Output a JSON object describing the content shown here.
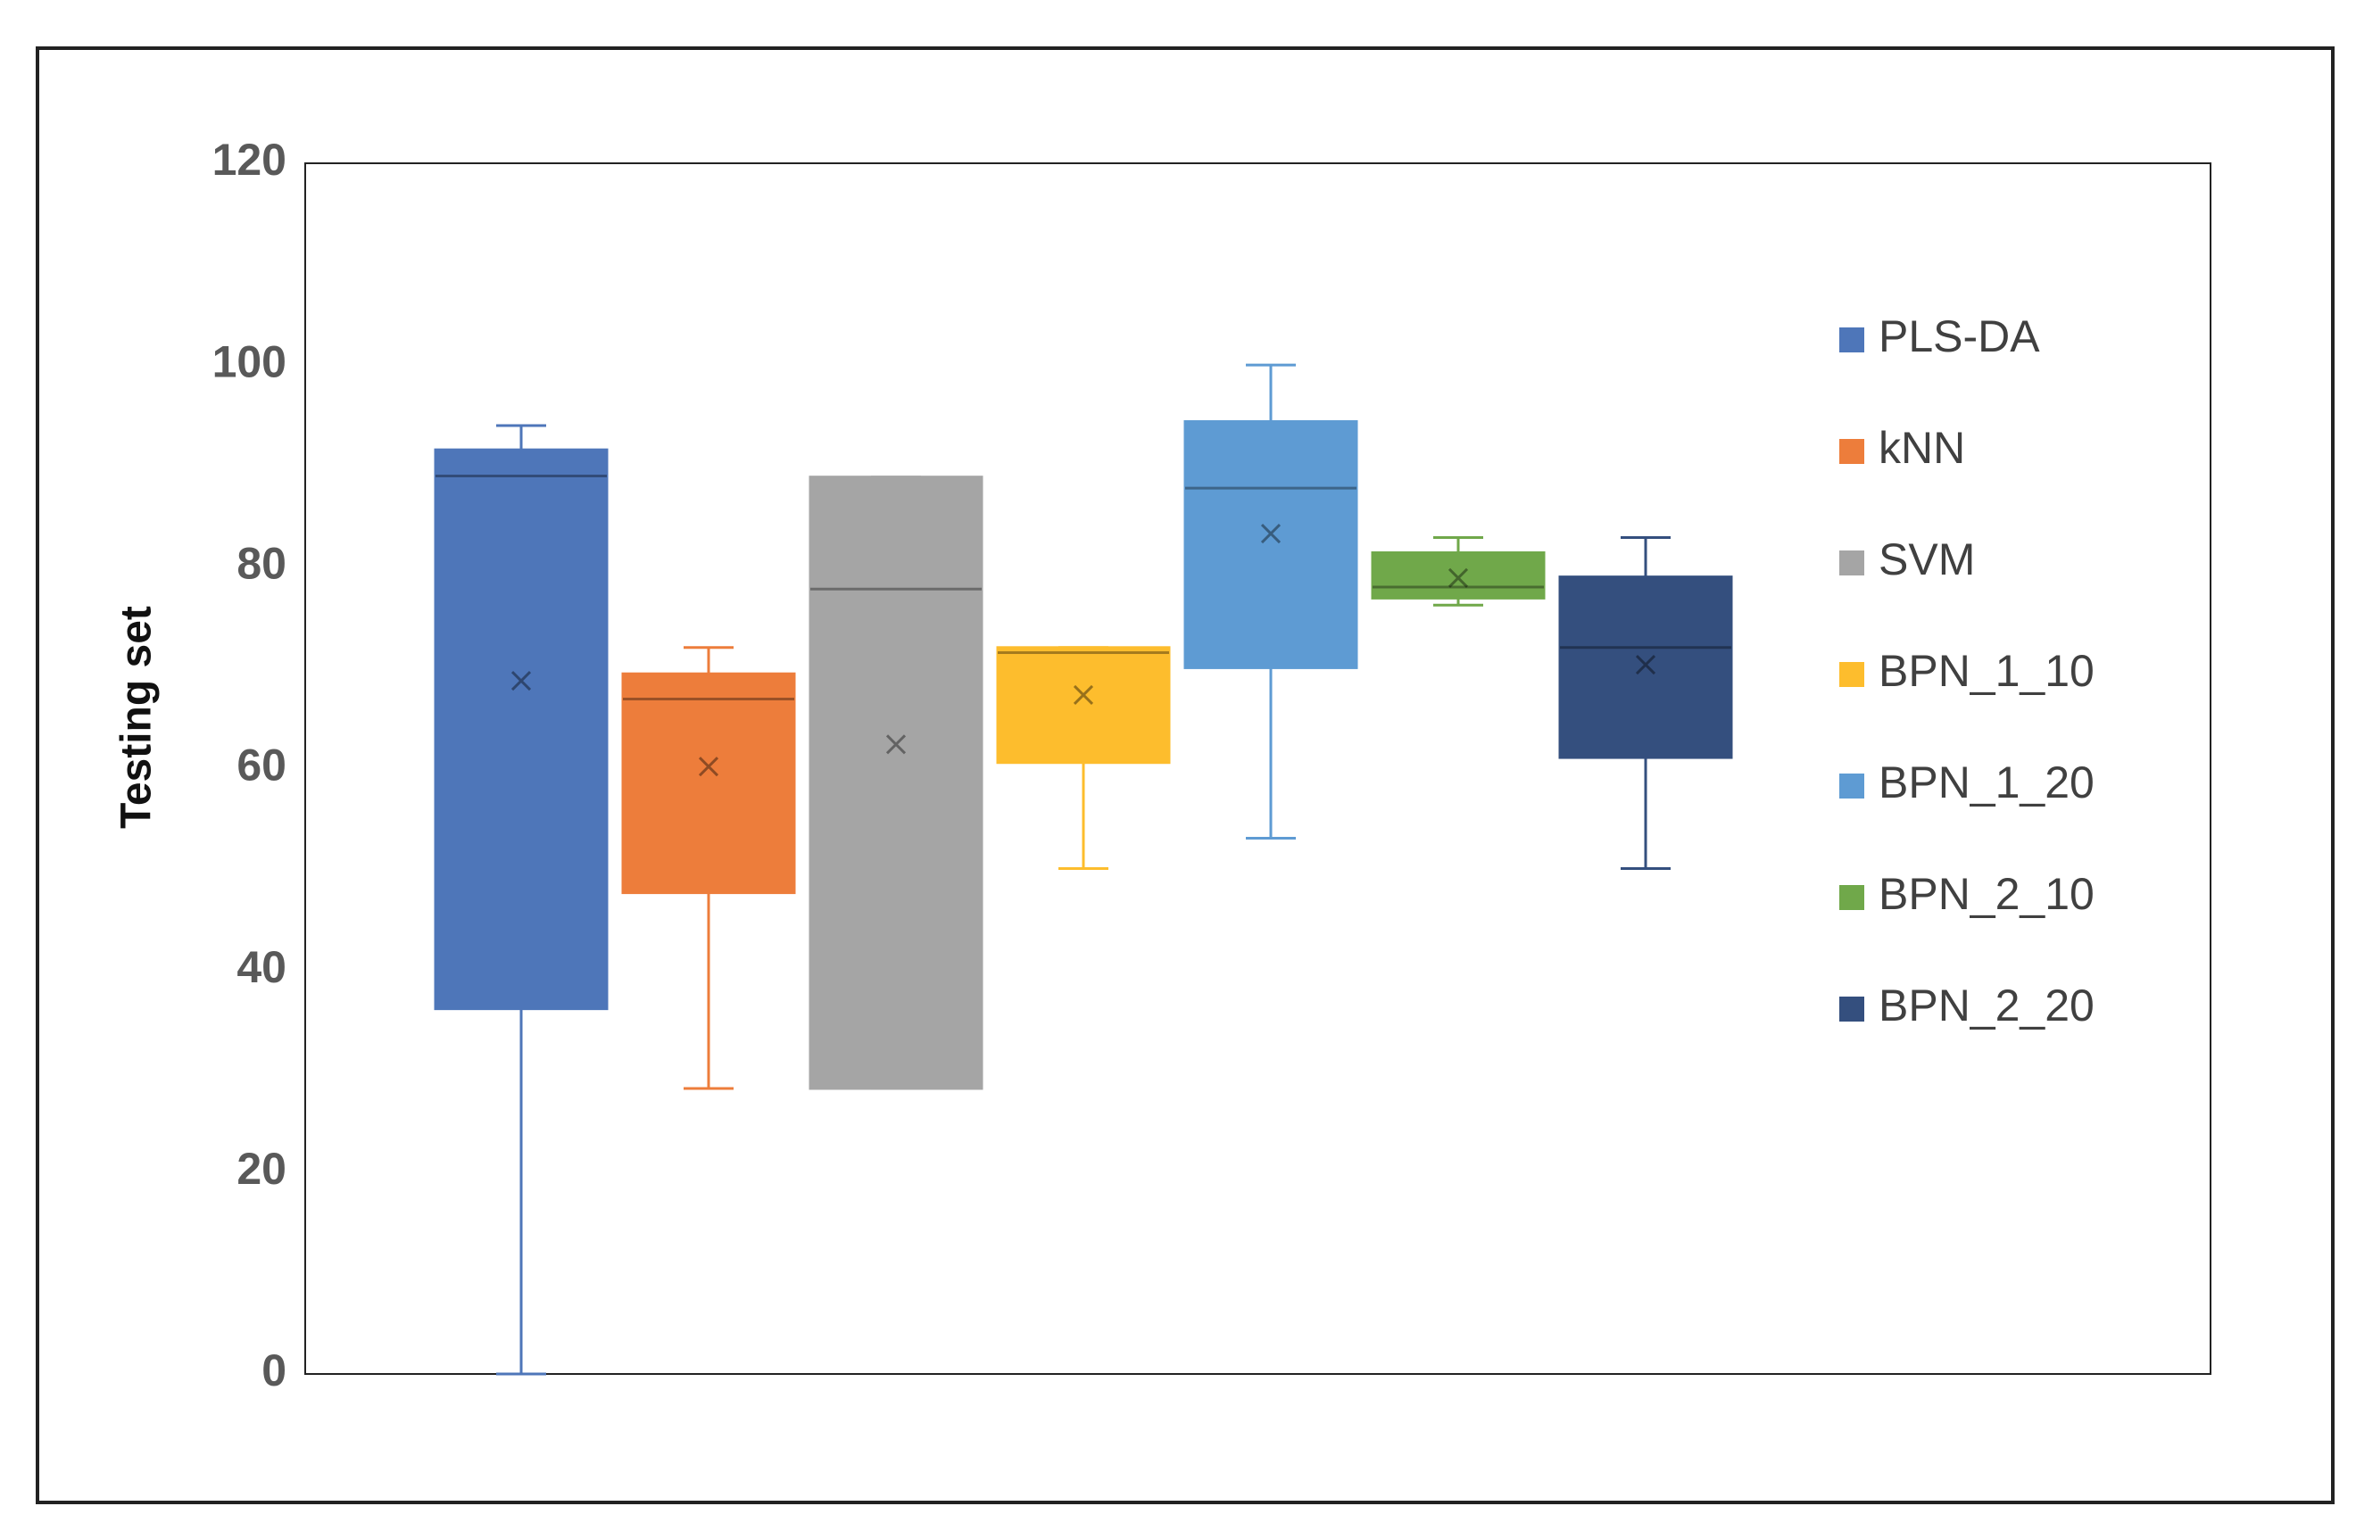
{
  "chart_data": {
    "type": "box",
    "ylabel": "Testing set",
    "ylim": [
      0,
      120
    ],
    "yticks": [
      0,
      20,
      40,
      60,
      80,
      100,
      120
    ],
    "grid": false,
    "legend": "right",
    "series": [
      {
        "name": "PLS-DA",
        "color": "#4e76b9",
        "min": 0,
        "q1": 36.2,
        "median": 89,
        "q3": 91.6,
        "max": 94,
        "mean": 68.7
      },
      {
        "name": "kNN",
        "color": "#ed7d3b",
        "min": 28.3,
        "q1": 47.7,
        "median": 66.9,
        "q3": 69.4,
        "max": 72,
        "mean": 60.2
      },
      {
        "name": "SVM",
        "color": "#a5a5a5",
        "min": 28.3,
        "q1": 28.3,
        "median": 77.8,
        "q3": 88.9,
        "max": 88.9,
        "mean": 62.4
      },
      {
        "name": "BPN_1_10",
        "color": "#fdbd2d",
        "min": 50.1,
        "q1": 60.6,
        "median": 71.5,
        "q3": 72,
        "max": 72,
        "mean": 67.3
      },
      {
        "name": "BPN_1_20",
        "color": "#5e9bd3",
        "min": 53.1,
        "q1": 70,
        "median": 87.8,
        "q3": 94.4,
        "max": 100,
        "mean": 83.3
      },
      {
        "name": "BPN_2_10",
        "color": "#70a84a",
        "min": 76.2,
        "q1": 76.9,
        "median": 78,
        "q3": 81.4,
        "max": 82.9,
        "mean": 78.9
      },
      {
        "name": "BPN_2_20",
        "color": "#344f7e",
        "min": 50.1,
        "q1": 61.1,
        "median": 72,
        "q3": 79,
        "max": 82.9,
        "mean": 70.3
      }
    ]
  }
}
